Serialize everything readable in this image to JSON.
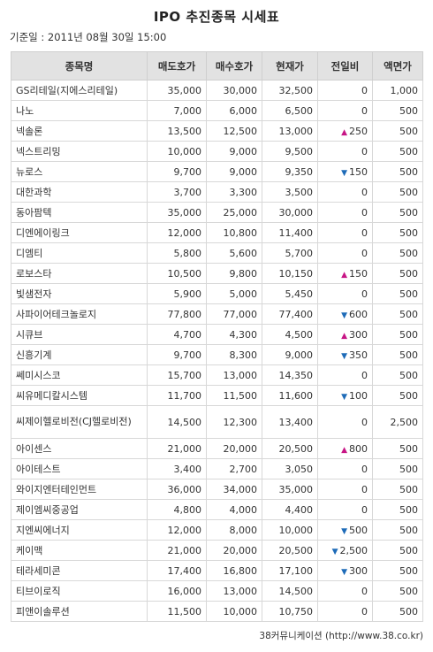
{
  "title": "IPO 추진종목 시세표",
  "basis": "기준일 : 2011년 08월 30일 15:00",
  "columns": [
    "종목명",
    "매도호가",
    "매수호가",
    "현재가",
    "전일비",
    "액면가"
  ],
  "rows": [
    {
      "name": "GS리테일(지에스리테일)",
      "sell": "35,000",
      "buy": "30,000",
      "price": "32,500",
      "dir": "",
      "change": "0",
      "par": "1,000"
    },
    {
      "name": "나노",
      "sell": "7,000",
      "buy": "6,000",
      "price": "6,500",
      "dir": "",
      "change": "0",
      "par": "500"
    },
    {
      "name": "넥솔론",
      "sell": "13,500",
      "buy": "12,500",
      "price": "13,000",
      "dir": "up",
      "change": "250",
      "par": "500"
    },
    {
      "name": "넥스트리밍",
      "sell": "10,000",
      "buy": "9,000",
      "price": "9,500",
      "dir": "",
      "change": "0",
      "par": "500"
    },
    {
      "name": "뉴로스",
      "sell": "9,700",
      "buy": "9,000",
      "price": "9,350",
      "dir": "down",
      "change": "150",
      "par": "500"
    },
    {
      "name": "대한과학",
      "sell": "3,700",
      "buy": "3,300",
      "price": "3,500",
      "dir": "",
      "change": "0",
      "par": "500"
    },
    {
      "name": "동아팜텍",
      "sell": "35,000",
      "buy": "25,000",
      "price": "30,000",
      "dir": "",
      "change": "0",
      "par": "500"
    },
    {
      "name": "디엔에이링크",
      "sell": "12,000",
      "buy": "10,800",
      "price": "11,400",
      "dir": "",
      "change": "0",
      "par": "500"
    },
    {
      "name": "디엠티",
      "sell": "5,800",
      "buy": "5,600",
      "price": "5,700",
      "dir": "",
      "change": "0",
      "par": "500"
    },
    {
      "name": "로보스타",
      "sell": "10,500",
      "buy": "9,800",
      "price": "10,150",
      "dir": "up",
      "change": "150",
      "par": "500"
    },
    {
      "name": "빛샘전자",
      "sell": "5,900",
      "buy": "5,000",
      "price": "5,450",
      "dir": "",
      "change": "0",
      "par": "500"
    },
    {
      "name": "사파이어테크놀로지",
      "sell": "77,800",
      "buy": "77,000",
      "price": "77,400",
      "dir": "down",
      "change": "600",
      "par": "500"
    },
    {
      "name": "시큐브",
      "sell": "4,700",
      "buy": "4,300",
      "price": "4,500",
      "dir": "up",
      "change": "300",
      "par": "500"
    },
    {
      "name": "신흥기계",
      "sell": "9,700",
      "buy": "8,300",
      "price": "9,000",
      "dir": "down",
      "change": "350",
      "par": "500"
    },
    {
      "name": "쎄미시스코",
      "sell": "15,700",
      "buy": "13,000",
      "price": "14,350",
      "dir": "",
      "change": "0",
      "par": "500"
    },
    {
      "name": "씨유메디칼시스템",
      "sell": "11,700",
      "buy": "11,500",
      "price": "11,600",
      "dir": "down",
      "change": "100",
      "par": "500"
    },
    {
      "name": "씨제이헬로비전(CJ헬로비전)",
      "sell": "14,500",
      "buy": "12,300",
      "price": "13,400",
      "dir": "",
      "change": "0",
      "par": "2,500",
      "tall": true
    },
    {
      "name": "아이센스",
      "sell": "21,000",
      "buy": "20,000",
      "price": "20,500",
      "dir": "up",
      "change": "800",
      "par": "500"
    },
    {
      "name": "아이테스트",
      "sell": "3,400",
      "buy": "2,700",
      "price": "3,050",
      "dir": "",
      "change": "0",
      "par": "500"
    },
    {
      "name": "와이지엔터테인먼트",
      "sell": "36,000",
      "buy": "34,000",
      "price": "35,000",
      "dir": "",
      "change": "0",
      "par": "500"
    },
    {
      "name": "제이엠씨중공업",
      "sell": "4,800",
      "buy": "4,000",
      "price": "4,400",
      "dir": "",
      "change": "0",
      "par": "500"
    },
    {
      "name": "지엔씨에너지",
      "sell": "12,000",
      "buy": "8,000",
      "price": "10,000",
      "dir": "down",
      "change": "500",
      "par": "500"
    },
    {
      "name": "케이맥",
      "sell": "21,000",
      "buy": "20,000",
      "price": "20,500",
      "dir": "down",
      "change": "2,500",
      "par": "500"
    },
    {
      "name": "테라세미콘",
      "sell": "17,400",
      "buy": "16,800",
      "price": "17,100",
      "dir": "down",
      "change": "300",
      "par": "500"
    },
    {
      "name": "티브이로직",
      "sell": "16,000",
      "buy": "13,000",
      "price": "14,500",
      "dir": "",
      "change": "0",
      "par": "500"
    },
    {
      "name": "피앤이솔루션",
      "sell": "11,500",
      "buy": "10,000",
      "price": "10,750",
      "dir": "",
      "change": "0",
      "par": "500"
    }
  ],
  "footer": "38커뮤니케이션 (http://www.38.co.kr)",
  "colors": {
    "up": "#c71585",
    "down": "#1e6bb8",
    "header_bg": "#e2e2e2"
  }
}
